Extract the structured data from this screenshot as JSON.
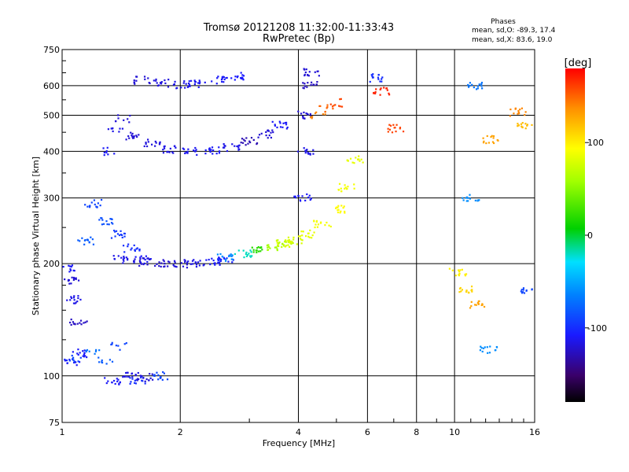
{
  "chart_data": {
    "type": "scatter",
    "title": "Tromsø 20121208 11:32:00-11:33:43",
    "subtitle": "RwPretec (Bp)",
    "xlabel": "Frequency [MHz]",
    "ylabel": "Stationary phase Virtual Height [km]",
    "x_scale": "log",
    "y_scale": "log",
    "xlim": [
      1,
      16
    ],
    "ylim": [
      75,
      750
    ],
    "grid": true,
    "x_ticks": [
      1,
      2,
      4,
      6,
      8,
      10,
      16
    ],
    "y_ticks": [
      75,
      100,
      200,
      300,
      400,
      500,
      600,
      750
    ],
    "colorbar": {
      "label": "[deg]",
      "range": [
        -180,
        180
      ],
      "ticks": [
        100,
        0,
        -100
      ]
    },
    "stats_header": "Phases",
    "stats": [
      "mean, sd,O: -89.3, 17.4",
      "mean, sd,X: 83.6, 19.0"
    ],
    "traces": [
      {
        "x": [
          1.03,
          1.05,
          1.08,
          1.1,
          1.12
        ],
        "y": [
          195,
          180,
          160,
          140,
          115
        ],
        "phase": [
          -110,
          -120,
          -115,
          -125,
          -110
        ]
      },
      {
        "x": [
          1.03,
          1.06,
          1.09
        ],
        "y": [
          110,
          108,
          112
        ],
        "phase": [
          -100,
          -110,
          -90
        ]
      },
      {
        "x": [
          1.15,
          1.2,
          1.3,
          1.4,
          1.5,
          1.6
        ],
        "y": [
          230,
          290,
          260,
          240,
          220,
          205
        ],
        "phase": [
          -80,
          -90,
          -85,
          -95,
          -100,
          -110
        ]
      },
      {
        "x": [
          1.2,
          1.3,
          1.4
        ],
        "y": [
          115,
          110,
          120
        ],
        "phase": [
          -70,
          -80,
          -90
        ]
      },
      {
        "x": [
          1.3,
          1.36,
          1.42
        ],
        "y": [
          400,
          460,
          490
        ],
        "phase": [
          -110,
          -115,
          -120
        ]
      },
      {
        "x": [
          1.4,
          1.6,
          1.8,
          2.0,
          2.2,
          2.4,
          2.6
        ],
        "y": [
          205,
          202,
          200,
          200,
          201,
          203,
          206
        ],
        "phase": [
          -115,
          -120,
          -122,
          -118,
          -115,
          -110,
          -105
        ]
      },
      {
        "x": [
          2.6,
          2.9,
          3.2,
          3.5,
          3.7
        ],
        "y": [
          208,
          212,
          218,
          222,
          226
        ],
        "phase": [
          -60,
          -20,
          20,
          60,
          80
        ]
      },
      {
        "x": [
          3.7,
          3.9,
          4.2,
          4.6,
          5.0,
          5.3,
          5.6
        ],
        "y": [
          226,
          230,
          240,
          255,
          280,
          320,
          380
        ],
        "phase": [
          70,
          80,
          85,
          90,
          95,
          90,
          85
        ]
      },
      {
        "x": [
          1.5,
          1.7,
          1.9,
          2.1,
          2.4,
          2.7,
          3.0,
          3.3,
          3.6
        ],
        "y": [
          440,
          420,
          405,
          400,
          402,
          410,
          425,
          445,
          470
        ],
        "phase": [
          -120,
          -118,
          -115,
          -112,
          -110,
          -115,
          -130,
          -120,
          -110
        ]
      },
      {
        "x": [
          1.6,
          1.8,
          2.0,
          2.2,
          2.5,
          2.8
        ],
        "y": [
          620,
          610,
          605,
          608,
          620,
          635
        ],
        "phase": [
          -120,
          -118,
          -115,
          -112,
          -110,
          -108
        ]
      },
      {
        "x": [
          4.1,
          4.15,
          4.2,
          4.25,
          4.3
        ],
        "y": [
          300,
          400,
          500,
          600,
          650
        ],
        "phase": [
          -110,
          -115,
          -120,
          -125,
          -120
        ]
      },
      {
        "x": [
          4.5,
          4.7,
          5.0
        ],
        "y": [
          500,
          520,
          540
        ],
        "phase": [
          140,
          150,
          160
        ]
      },
      {
        "x": [
          6.3,
          6.5,
          7.1,
          11.2,
          12.3,
          14.5,
          15.2
        ],
        "y": [
          630,
          580,
          460,
          600,
          430,
          510,
          470
        ],
        "phase": [
          -100,
          170,
          160,
          -70,
          130,
          140,
          120
        ]
      },
      {
        "x": [
          10.2,
          10.7,
          11.0,
          11.5,
          12.2,
          15.5
        ],
        "y": [
          190,
          170,
          300,
          155,
          118,
          170
        ],
        "phase": [
          100,
          110,
          -60,
          130,
          -60,
          -90
        ]
      },
      {
        "x": [
          1.35,
          1.5,
          1.55,
          1.62,
          1.8
        ],
        "y": [
          97,
          100,
          97,
          99,
          100
        ],
        "phase": [
          -110,
          -115,
          -100,
          -120,
          -90
        ]
      }
    ]
  }
}
